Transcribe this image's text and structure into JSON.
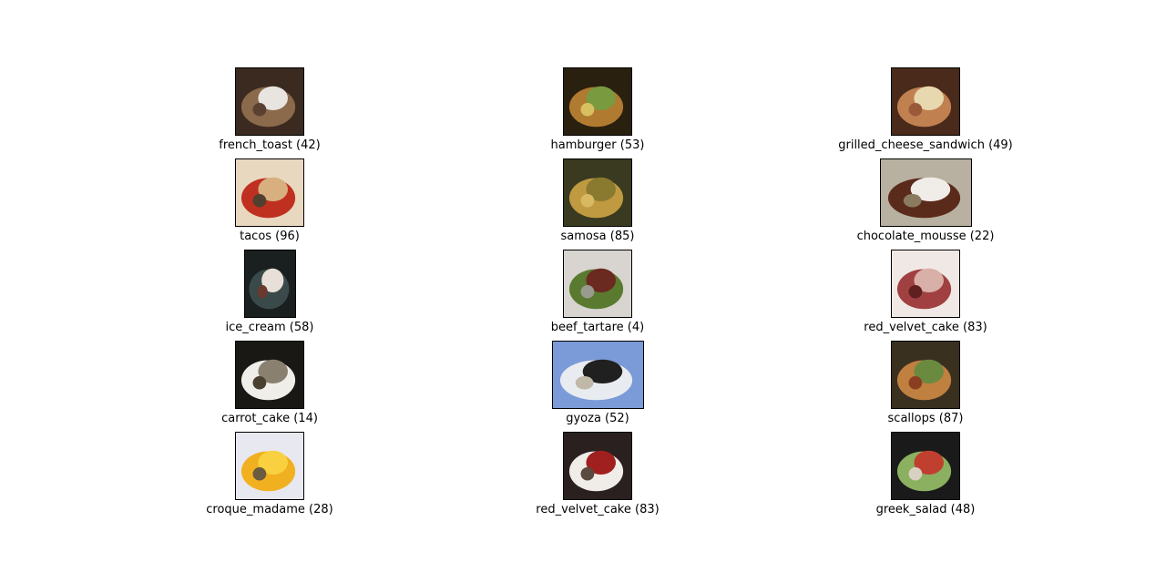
{
  "figure": {
    "items": [
      {
        "label": "french_toast (42)",
        "palette": [
          "#3a2a20",
          "#8a6a4a",
          "#e8e4e0",
          "#5a4030"
        ]
      },
      {
        "label": "hamburger (53)",
        "palette": [
          "#2a2010",
          "#b07a30",
          "#7a9a40",
          "#d8c060"
        ]
      },
      {
        "label": "grilled_cheese_sandwich (49)",
        "palette": [
          "#4a2a1a",
          "#c08050",
          "#e8d8b0",
          "#9a5a3a"
        ]
      },
      {
        "label": "tacos (96)",
        "palette": [
          "#e8d8c0",
          "#c03020",
          "#d8b080",
          "#504030"
        ]
      },
      {
        "label": "samosa (85)",
        "palette": [
          "#3a3a20",
          "#c09a40",
          "#8a7a30",
          "#d8b860"
        ]
      },
      {
        "label": "chocolate_mousse (22)",
        "palette": [
          "#b8b0a0",
          "#5a2a1a",
          "#f0ece8",
          "#8a7a60"
        ]
      },
      {
        "label": "ice_cream (58)",
        "palette": [
          "#1a2020",
          "#3a4a4a",
          "#e8e0d8",
          "#6a3a30"
        ]
      },
      {
        "label": "beef_tartare (4)",
        "palette": [
          "#d8d4d0",
          "#5a7a30",
          "#6a2a20",
          "#9a9a90"
        ]
      },
      {
        "label": "red_velvet_cake (83)",
        "palette": [
          "#f0e8e4",
          "#a04040",
          "#d8b0a8",
          "#602020"
        ]
      },
      {
        "label": "carrot_cake (14)",
        "palette": [
          "#1a1814",
          "#f0eee8",
          "#8a8070",
          "#4a4030"
        ]
      },
      {
        "label": "gyoza (52)",
        "palette": [
          "#7a9ad8",
          "#e8ecf0",
          "#202020",
          "#c0b8a8"
        ]
      },
      {
        "label": "scallops (87)",
        "palette": [
          "#3a3020",
          "#c08040",
          "#6a8a40",
          "#8a4020"
        ]
      },
      {
        "label": "croque_madame (28)",
        "palette": [
          "#e8e8f0",
          "#f0b020",
          "#f8d040",
          "#6a5a40"
        ]
      },
      {
        "label": "red_velvet_cake (83)",
        "palette": [
          "#2a2020",
          "#f0ece8",
          "#a02020",
          "#5a4a40"
        ]
      },
      {
        "label": "greek_salad (48)",
        "palette": [
          "#1a1a1a",
          "#8ab060",
          "#c04030",
          "#d8d0c0"
        ]
      }
    ]
  }
}
